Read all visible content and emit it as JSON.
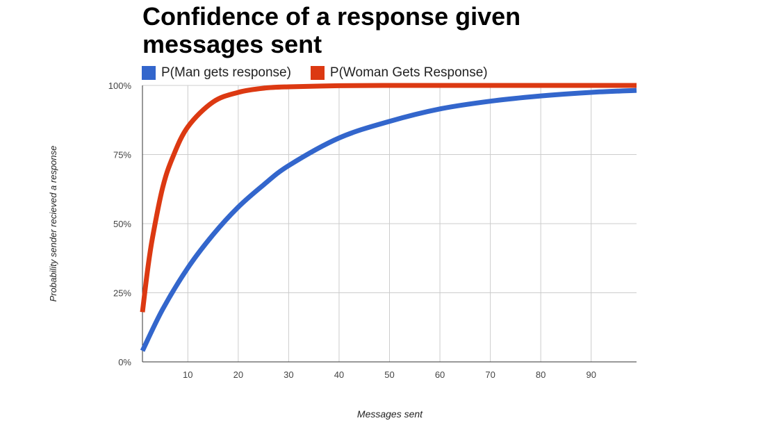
{
  "chart_data": {
    "type": "line",
    "title": "Confidence of a response given messages sent",
    "xlabel": "Messages sent",
    "ylabel": "Probability sender recieved a response",
    "xlim": [
      1,
      99
    ],
    "ylim": [
      0,
      1
    ],
    "x_ticks": [
      10,
      20,
      30,
      40,
      50,
      60,
      70,
      80,
      90
    ],
    "y_ticks": [
      {
        "value": 0,
        "label": "0%"
      },
      {
        "value": 0.25,
        "label": "25%"
      },
      {
        "value": 0.5,
        "label": "50%"
      },
      {
        "value": 0.75,
        "label": "75%"
      },
      {
        "value": 1,
        "label": "100%"
      }
    ],
    "legend_position": "top-left",
    "series": [
      {
        "name": "P(Man gets response)",
        "color": "#3366cc",
        "x": [
          1,
          5,
          10,
          15,
          20,
          25,
          30,
          40,
          50,
          60,
          70,
          80,
          90,
          99
        ],
        "values": [
          0.04,
          0.19,
          0.34,
          0.46,
          0.56,
          0.64,
          0.71,
          0.81,
          0.87,
          0.915,
          0.943,
          0.962,
          0.975,
          0.982
        ]
      },
      {
        "name": "P(Woman Gets Response)",
        "color": "#dc3912",
        "x": [
          1,
          2,
          3,
          5,
          7,
          10,
          15,
          20,
          25,
          30,
          40,
          50,
          60,
          70,
          80,
          90,
          99
        ],
        "values": [
          0.18,
          0.33,
          0.45,
          0.63,
          0.74,
          0.85,
          0.94,
          0.975,
          0.99,
          0.995,
          0.999,
          1.0,
          1.0,
          1.0,
          1.0,
          1.0,
          1.0
        ]
      }
    ]
  }
}
